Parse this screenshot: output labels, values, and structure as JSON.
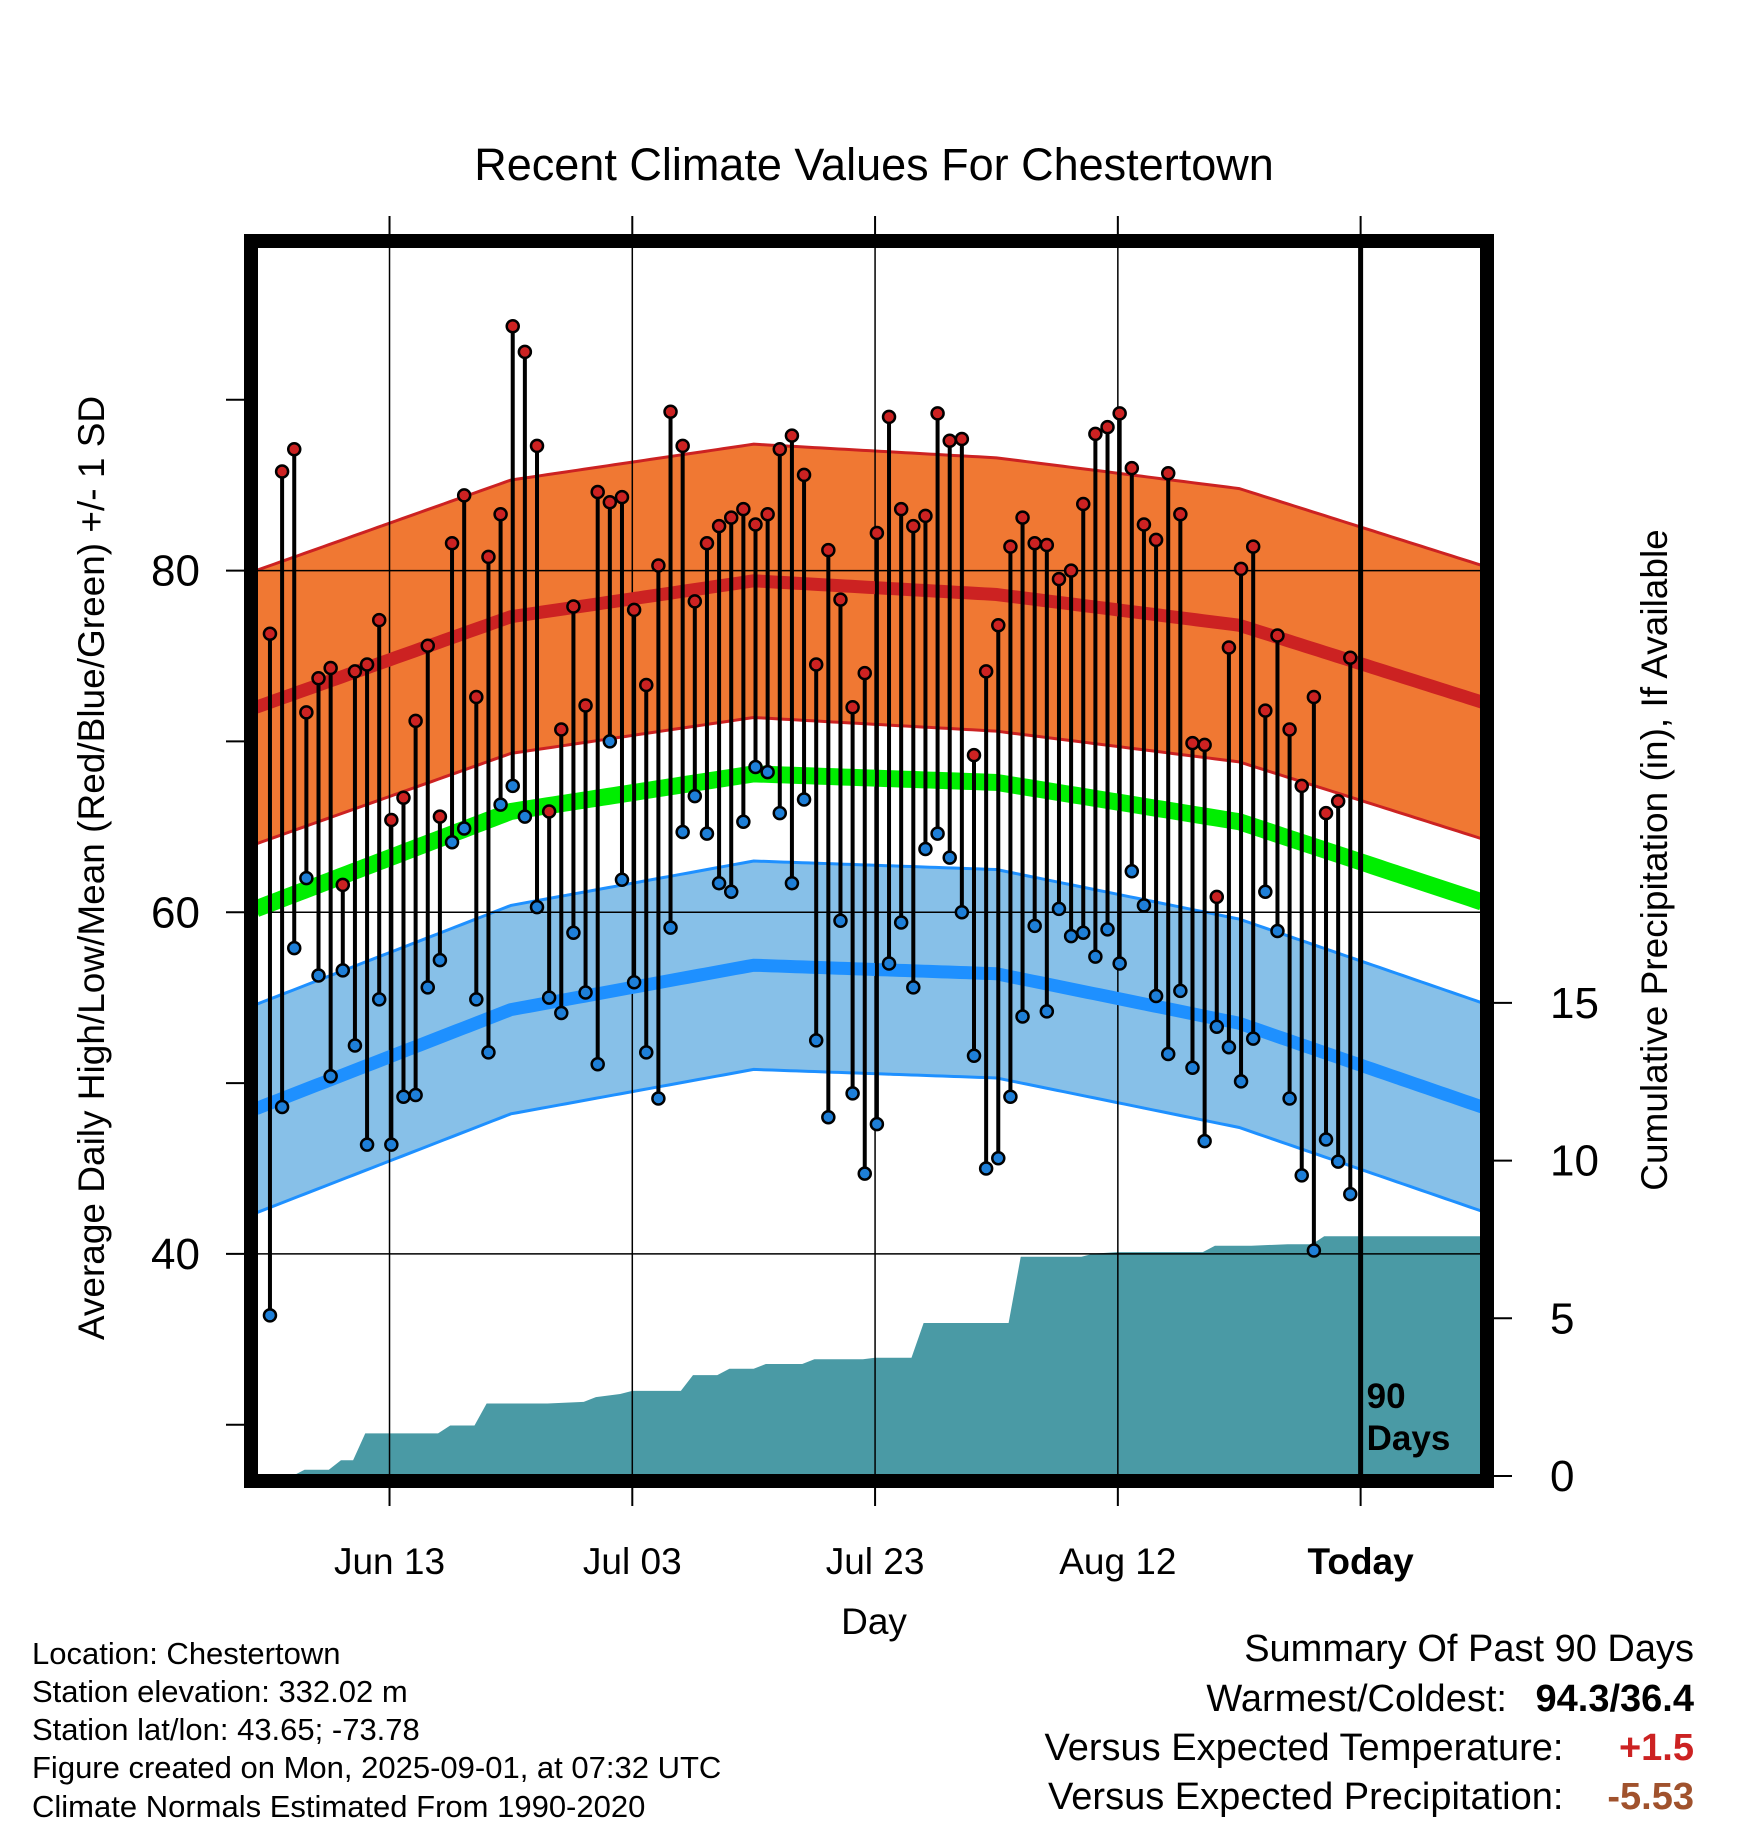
{
  "chart_data": {
    "type": "line",
    "title": "Recent Climate Values For Chestertown",
    "xlabel": "Day",
    "ylabel": "Average Daily High/Low/Mean (Red/Blue/Green) +/- 1 SD",
    "y2label": "Cumulative Precipitation (in), If Available",
    "ylim": [
      27,
      99
    ],
    "y2lim": [
      0,
      39
    ],
    "y_ticks": [
      "40",
      "60",
      "80"
    ],
    "y2_ticks": [
      "0",
      "5",
      "10",
      "15"
    ],
    "x_ticks": [
      {
        "label": "Jun 13",
        "day": 10
      },
      {
        "label": "Jul 03",
        "day": 30
      },
      {
        "label": "Jul 23",
        "day": 50
      },
      {
        "label": "Aug 12",
        "day": 70
      },
      {
        "label": "Today",
        "day": 90
      }
    ],
    "x_range": [
      -1,
      100
    ],
    "today_marker": "90\nDays",
    "grid": true,
    "colors": {
      "high": "#cc2222",
      "high_band": "#f07833",
      "low": "#1e90ff",
      "low_band": "#87c0e8",
      "mean": "#00ee00",
      "precip": "#4a9aa5",
      "high_point": "#cc2222",
      "low_point": "#1e7fd8"
    },
    "normal_high": [
      {
        "day": -1,
        "v": 72.0
      },
      {
        "day": 20,
        "v": 77.3
      },
      {
        "day": 40,
        "v": 79.4
      },
      {
        "day": 60,
        "v": 78.6
      },
      {
        "day": 80,
        "v": 76.8
      },
      {
        "day": 100,
        "v": 72.3
      }
    ],
    "normal_high_sd": 8.0,
    "normal_low": [
      {
        "day": -1,
        "v": 48.5
      },
      {
        "day": 20,
        "v": 54.3
      },
      {
        "day": 40,
        "v": 56.9
      },
      {
        "day": 60,
        "v": 56.4
      },
      {
        "day": 80,
        "v": 53.5
      },
      {
        "day": 100,
        "v": 48.6
      }
    ],
    "normal_low_sd": 6.1,
    "normal_mean": [
      {
        "day": -1,
        "v": 60.2
      },
      {
        "day": 20,
        "v": 65.9
      },
      {
        "day": 40,
        "v": 68.1
      },
      {
        "day": 60,
        "v": 67.6
      },
      {
        "day": 80,
        "v": 65.3
      },
      {
        "day": 100,
        "v": 60.6
      }
    ],
    "daily_high": [
      76.3,
      85.8,
      87.1,
      71.7,
      73.7,
      74.3,
      61.6,
      74.1,
      74.5,
      77.1,
      65.4,
      66.7,
      71.2,
      75.6,
      65.6,
      81.6,
      84.4,
      72.6,
      80.8,
      83.3,
      94.3,
      92.8,
      87.3,
      65.9,
      70.7,
      77.9,
      72.1,
      84.6,
      84.0,
      84.3,
      77.7,
      73.3,
      80.3,
      89.3,
      87.3,
      78.2,
      81.6,
      82.6,
      83.1,
      83.6,
      82.7,
      83.3,
      87.1,
      87.9,
      85.6,
      74.5,
      81.2,
      78.3,
      72.0,
      74.0,
      82.2,
      89.0,
      83.6,
      82.6,
      83.2,
      89.2,
      87.6,
      87.7,
      69.2,
      74.1,
      76.8,
      81.4,
      83.1,
      81.6,
      81.5,
      79.5,
      80.0,
      83.9,
      88.0,
      88.4,
      89.2,
      86.0,
      82.7,
      81.8,
      85.7,
      83.3,
      69.9,
      69.8,
      60.9,
      75.5,
      80.1,
      81.4,
      71.8,
      76.2,
      70.7,
      67.4,
      72.6,
      65.8,
      66.5,
      74.9
    ],
    "daily_low": [
      36.4,
      48.6,
      57.9,
      62.0,
      56.3,
      50.4,
      56.6,
      52.2,
      46.4,
      54.9,
      46.4,
      49.2,
      49.3,
      55.6,
      57.2,
      64.1,
      64.9,
      54.9,
      51.8,
      66.3,
      67.4,
      65.6,
      60.3,
      55.0,
      54.1,
      58.8,
      55.3,
      51.1,
      70.0,
      61.9,
      55.9,
      51.8,
      49.1,
      59.1,
      64.7,
      66.8,
      64.6,
      61.7,
      61.2,
      65.3,
      68.5,
      68.2,
      65.8,
      61.7,
      66.6,
      52.5,
      48.0,
      59.5,
      49.4,
      44.7,
      47.6,
      57.0,
      59.4,
      55.6,
      63.7,
      64.6,
      63.2,
      60.0,
      51.6,
      45.0,
      45.6,
      49.2,
      53.9,
      59.2,
      54.2,
      60.2,
      58.6,
      58.8,
      57.4,
      59.0,
      57.0,
      62.4,
      60.4,
      55.1,
      51.7,
      55.4,
      50.9,
      46.6,
      53.3,
      52.1,
      50.1,
      52.6,
      61.2,
      58.9,
      49.1,
      44.6,
      40.2,
      46.7,
      45.4,
      43.5
    ],
    "cumulative_precip": [
      {
        "day": -1,
        "v": 0
      },
      {
        "day": 2,
        "v": 0
      },
      {
        "day": 3,
        "v": 0.2
      },
      {
        "day": 5,
        "v": 0.2
      },
      {
        "day": 6,
        "v": 0.5
      },
      {
        "day": 7,
        "v": 0.5
      },
      {
        "day": 8,
        "v": 1.35
      },
      {
        "day": 14,
        "v": 1.35
      },
      {
        "day": 15,
        "v": 1.6
      },
      {
        "day": 17,
        "v": 1.6
      },
      {
        "day": 18,
        "v": 2.3
      },
      {
        "day": 23,
        "v": 2.3
      },
      {
        "day": 26,
        "v": 2.35
      },
      {
        "day": 27,
        "v": 2.5
      },
      {
        "day": 29,
        "v": 2.6
      },
      {
        "day": 30,
        "v": 2.7
      },
      {
        "day": 34,
        "v": 2.7
      },
      {
        "day": 35,
        "v": 3.2
      },
      {
        "day": 37,
        "v": 3.2
      },
      {
        "day": 38,
        "v": 3.4
      },
      {
        "day": 40,
        "v": 3.4
      },
      {
        "day": 41,
        "v": 3.55
      },
      {
        "day": 44,
        "v": 3.55
      },
      {
        "day": 45,
        "v": 3.7
      },
      {
        "day": 49,
        "v": 3.7
      },
      {
        "day": 50,
        "v": 3.75
      },
      {
        "day": 53,
        "v": 3.75
      },
      {
        "day": 54,
        "v": 4.85
      },
      {
        "day": 61,
        "v": 4.85
      },
      {
        "day": 62,
        "v": 6.95
      },
      {
        "day": 67,
        "v": 6.95
      },
      {
        "day": 68,
        "v": 7.05
      },
      {
        "day": 70,
        "v": 7.1
      },
      {
        "day": 77,
        "v": 7.1
      },
      {
        "day": 78,
        "v": 7.3
      },
      {
        "day": 81,
        "v": 7.3
      },
      {
        "day": 84,
        "v": 7.35
      },
      {
        "day": 86,
        "v": 7.35
      },
      {
        "day": 87,
        "v": 7.6
      },
      {
        "day": 100,
        "v": 7.6
      }
    ]
  },
  "info": {
    "location": "Location: Chestertown",
    "elevation": "Station elevation: 332.02 m",
    "latlon": "Station lat/lon: 43.65; -73.78",
    "created": "Figure created on Mon, 2025-09-01, at 07:32 UTC",
    "normals": "Climate Normals Estimated From 1990-2020"
  },
  "summary": {
    "heading": "Summary Of Past 90 Days",
    "warm_cold_label": "Warmest/Coldest:",
    "warm_cold_value": "94.3/36.4",
    "temp_label": "Versus Expected Temperature:",
    "temp_value": "+1.5",
    "temp_color": "#cc2222",
    "precip_label": "Versus Expected Precipitation:",
    "precip_value": "-5.53",
    "precip_color": "#a0522d"
  }
}
